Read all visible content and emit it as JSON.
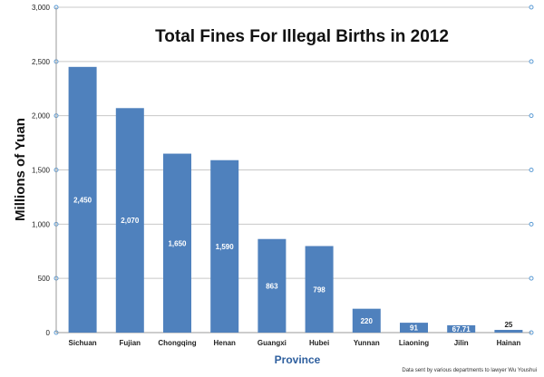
{
  "chart_data": {
    "type": "bar",
    "title": "Total Fines For Illegal Births in 2012",
    "xlabel": "Province",
    "ylabel": "Millions of Yuan",
    "categories": [
      "Sichuan",
      "Fujian",
      "Chongqing",
      "Henan",
      "Guangxi",
      "Hubei",
      "Yunnan",
      "Liaoning",
      "Jilin",
      "Hainan"
    ],
    "values": [
      2450,
      2070,
      1650,
      1590,
      863,
      798,
      220,
      91,
      67.71,
      25
    ],
    "data_labels": [
      "2,450",
      "2,070",
      "1,650",
      "1,590",
      "863",
      "798",
      "220",
      "91",
      "67.71",
      "25"
    ],
    "ylim": [
      0,
      3000
    ],
    "yticks": [
      0,
      500,
      1000,
      1500,
      2000,
      2500,
      3000
    ],
    "ytick_labels": [
      "0",
      "500",
      "1,000",
      "1,500",
      "2,000",
      "2,500",
      "3,000"
    ],
    "grid": true,
    "bar_color": "#4f81bd",
    "source_note": "Data sent by various departments to lawyer Wu Youshui"
  }
}
